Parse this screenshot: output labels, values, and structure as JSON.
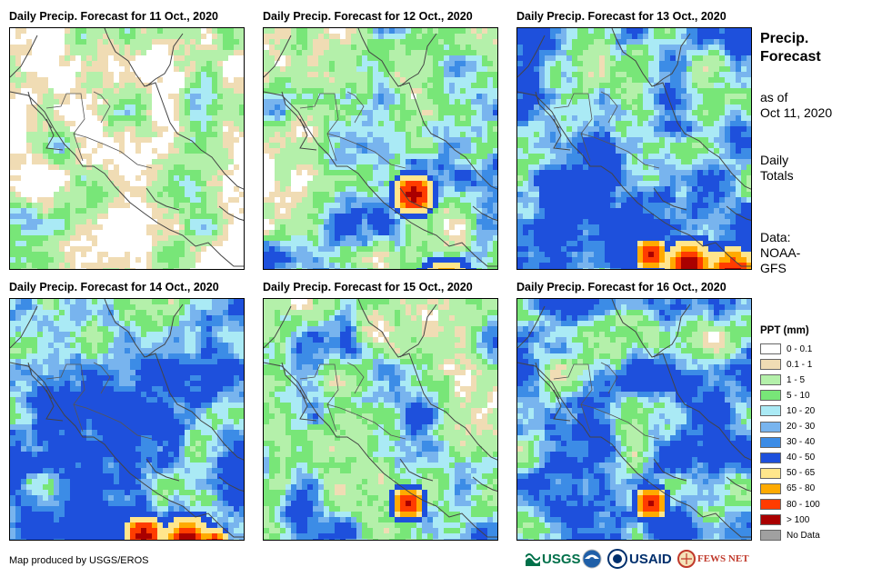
{
  "panels": [
    {
      "title": "Daily Precip. Forecast for 11 Oct., 2020",
      "pattern": 0
    },
    {
      "title": "Daily Precip. Forecast for 12 Oct., 2020",
      "pattern": 1
    },
    {
      "title": "Daily Precip. Forecast for 13 Oct., 2020",
      "pattern": 2
    },
    {
      "title": "Daily Precip. Forecast for 14 Oct., 2020",
      "pattern": 3
    },
    {
      "title": "Daily Precip. Forecast for 15 Oct., 2020",
      "pattern": 4
    },
    {
      "title": "Daily Precip. Forecast for 16 Oct., 2020",
      "pattern": 5
    }
  ],
  "side": {
    "title_line1": "Precip.",
    "title_line2": "Forecast",
    "asof_line1": "as of",
    "asof_line2": "Oct 11, 2020",
    "totals_line1": "Daily",
    "totals_line2": "Totals",
    "data_line1": "Data:",
    "data_line2": "NOAA-",
    "data_line3": "GFS"
  },
  "legend": {
    "title": "PPT (mm)",
    "items": [
      {
        "label": "0 - 0.1",
        "color": "#ffffff"
      },
      {
        "label": "0.1 - 1",
        "color": "#f0dcb4"
      },
      {
        "label": "1 - 5",
        "color": "#b4f0aa"
      },
      {
        "label": "5 - 10",
        "color": "#78e678"
      },
      {
        "label": "10 - 20",
        "color": "#aaeaf5"
      },
      {
        "label": "20 - 30",
        "color": "#78b4ee"
      },
      {
        "label": "30 - 40",
        "color": "#3c8ce6"
      },
      {
        "label": "40 - 50",
        "color": "#1e50dc"
      },
      {
        "label": "50 - 65",
        "color": "#ffe68c"
      },
      {
        "label": "65 - 80",
        "color": "#ffaa00"
      },
      {
        "label": "80 - 100",
        "color": "#ff3c00"
      },
      {
        "label": "> 100",
        "color": "#aa0000"
      },
      {
        "label": "No Data",
        "color": "#a0a0a0"
      }
    ]
  },
  "footer": {
    "credit": "Map produced by USGS/EROS",
    "usgs": "USGS",
    "usaid": "USAID",
    "fewsnet": "FEWS NET"
  }
}
